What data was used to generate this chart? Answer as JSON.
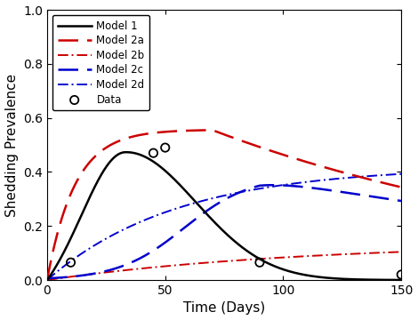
{
  "title": "",
  "xlabel": "Time (Days)",
  "ylabel": "Shedding Prevalence",
  "xlim": [
    0,
    150
  ],
  "ylim": [
    0,
    1
  ],
  "yticks": [
    0,
    0.2,
    0.4,
    0.6,
    0.8,
    1.0
  ],
  "xticks": [
    0,
    50,
    100,
    150
  ],
  "data_points_x": [
    10,
    45,
    50,
    90,
    150
  ],
  "data_points_y": [
    0.065,
    0.47,
    0.49,
    0.065,
    0.02
  ],
  "model1_color": "#000000",
  "model2a_color": "#cc0000",
  "model2b_color": "#cc0000",
  "model2c_color": "#0000cc",
  "model2d_color": "#0000cc",
  "legend_labels": [
    "Model 1",
    "Model 2a",
    "Model 2b",
    "Model 2c",
    "Model 2d",
    "Data"
  ],
  "legend_loc": "upper left",
  "figsize": [
    4.7,
    3.6
  ],
  "dpi": 100
}
